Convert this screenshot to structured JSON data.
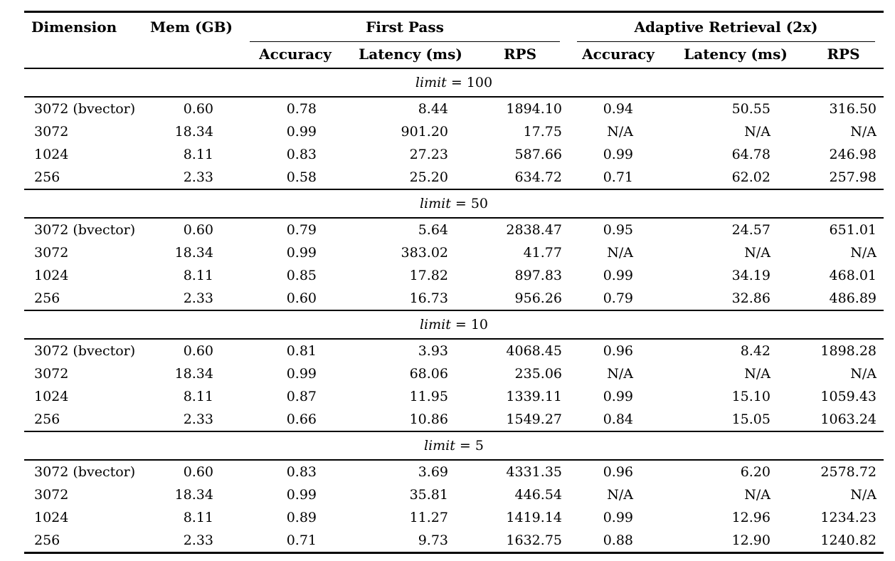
{
  "table": {
    "headers": {
      "dimension": "Dimension",
      "mem": "Mem (GB)",
      "first_pass": "First Pass",
      "adaptive": "Adaptive Retrieval (2x)",
      "sub": [
        "Accuracy",
        "Latency (ms)",
        "RPS",
        "Accuracy",
        "Latency (ms)",
        "RPS"
      ]
    },
    "field_names": [
      "dimension",
      "mem-gb",
      "fp-accuracy",
      "fp-latency-ms",
      "fp-rps",
      "ar-accuracy",
      "ar-latency-ms",
      "ar-rps"
    ],
    "sections": [
      {
        "math_var": "limit",
        "math_rest": "= 100",
        "rows": [
          {
            "cells": [
              "3072 (bvector)",
              "0.60",
              "0.78",
              "8.44",
              "1894.10",
              "0.94",
              "50.55",
              "316.50"
            ]
          },
          {
            "cells": [
              "3072",
              "18.34",
              "0.99",
              "901.20",
              "17.75",
              "N/A",
              "N/A",
              "N/A"
            ]
          },
          {
            "cells": [
              "1024",
              "8.11",
              "0.83",
              "27.23",
              "587.66",
              "0.99",
              "64.78",
              "246.98"
            ]
          },
          {
            "cells": [
              "256",
              "2.33",
              "0.58",
              "25.20",
              "634.72",
              "0.71",
              "62.02",
              "257.98"
            ]
          }
        ]
      },
      {
        "math_var": "limit",
        "math_rest": "= 50",
        "rows": [
          {
            "cells": [
              "3072 (bvector)",
              "0.60",
              "0.79",
              "5.64",
              "2838.47",
              "0.95",
              "24.57",
              "651.01"
            ]
          },
          {
            "cells": [
              "3072",
              "18.34",
              "0.99",
              "383.02",
              "41.77",
              "N/A",
              "N/A",
              "N/A"
            ]
          },
          {
            "cells": [
              "1024",
              "8.11",
              "0.85",
              "17.82",
              "897.83",
              "0.99",
              "34.19",
              "468.01"
            ]
          },
          {
            "cells": [
              "256",
              "2.33",
              "0.60",
              "16.73",
              "956.26",
              "0.79",
              "32.86",
              "486.89"
            ]
          }
        ]
      },
      {
        "math_var": "limit",
        "math_rest": "= 10",
        "rows": [
          {
            "cells": [
              "3072 (bvector)",
              "0.60",
              "0.81",
              "3.93",
              "4068.45",
              "0.96",
              "8.42",
              "1898.28"
            ]
          },
          {
            "cells": [
              "3072",
              "18.34",
              "0.99",
              "68.06",
              "235.06",
              "N/A",
              "N/A",
              "N/A"
            ]
          },
          {
            "cells": [
              "1024",
              "8.11",
              "0.87",
              "11.95",
              "1339.11",
              "0.99",
              "15.10",
              "1059.43"
            ]
          },
          {
            "cells": [
              "256",
              "2.33",
              "0.66",
              "10.86",
              "1549.27",
              "0.84",
              "15.05",
              "1063.24"
            ]
          }
        ]
      },
      {
        "math_var": "limit",
        "math_rest": "= 5",
        "rows": [
          {
            "cells": [
              "3072 (bvector)",
              "0.60",
              "0.83",
              "3.69",
              "4331.35",
              "0.96",
              "6.20",
              "2578.72"
            ]
          },
          {
            "cells": [
              "3072",
              "18.34",
              "0.99",
              "35.81",
              "446.54",
              "N/A",
              "N/A",
              "N/A"
            ]
          },
          {
            "cells": [
              "1024",
              "8.11",
              "0.89",
              "11.27",
              "1419.14",
              "0.99",
              "12.96",
              "1234.23"
            ]
          },
          {
            "cells": [
              "256",
              "2.33",
              "0.71",
              "9.73",
              "1632.75",
              "0.88",
              "12.90",
              "1240.82"
            ]
          }
        ]
      }
    ],
    "colors": {
      "text": "#000000",
      "background": "#ffffff",
      "rule": "#000000"
    }
  }
}
